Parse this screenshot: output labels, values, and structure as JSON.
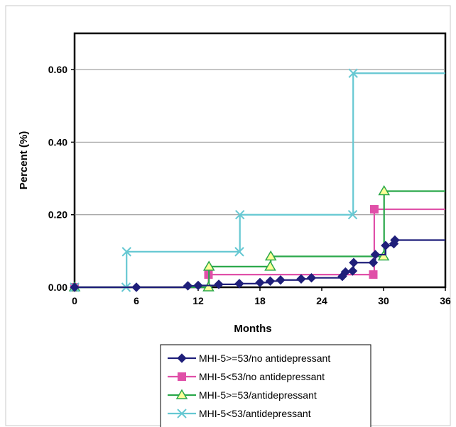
{
  "chart_data": {
    "type": "line",
    "title": "",
    "xlabel": "Months",
    "ylabel": "Percent (%)",
    "xlim": [
      0,
      36
    ],
    "ylim": [
      0,
      0.7
    ],
    "x_ticks": [
      0,
      6,
      12,
      18,
      24,
      30,
      36
    ],
    "x_tick_labels": [
      "0",
      "6",
      "12",
      "18",
      "24",
      "30",
      "36"
    ],
    "y_ticks": [
      0,
      0.2,
      0.4,
      0.6
    ],
    "y_tick_labels": [
      "0.00",
      "0.20",
      "0.40",
      "0.60"
    ],
    "grid": "horizontal",
    "legend_position": "bottom",
    "series": [
      {
        "name": "MHI-5>=53/no antidepressant",
        "color": "#1f1f7a",
        "marker": "diamond",
        "points": [
          [
            0,
            0
          ],
          [
            6,
            0
          ],
          [
            11,
            0.004
          ],
          [
            12,
            0.005
          ],
          [
            14,
            0.008
          ],
          [
            16,
            0.01
          ],
          [
            18,
            0.013
          ],
          [
            19,
            0.017
          ],
          [
            20,
            0.02
          ],
          [
            22,
            0.023
          ],
          [
            23,
            0.026
          ],
          [
            26,
            0.03
          ],
          [
            26.3,
            0.042
          ],
          [
            27,
            0.045
          ],
          [
            27.1,
            0.068
          ],
          [
            29,
            0.068
          ],
          [
            29.2,
            0.09
          ],
          [
            30.2,
            0.115
          ],
          [
            31,
            0.12
          ],
          [
            31.1,
            0.13
          ]
        ],
        "end_x": 36
      },
      {
        "name": "MHI-5<53/no antidepressant",
        "color": "#e050a8",
        "marker": "square",
        "points": [
          [
            0,
            0
          ],
          [
            13,
            0.035
          ],
          [
            29,
            0.035
          ],
          [
            29.1,
            0.215
          ]
        ],
        "end_x": 36
      },
      {
        "name": "MHI-5>=53/antidepressant",
        "color": "#2aa84a",
        "marker": "triangle",
        "points": [
          [
            0,
            0
          ],
          [
            13,
            0
          ],
          [
            13.05,
            0.057
          ],
          [
            19,
            0.057
          ],
          [
            19.05,
            0.085
          ],
          [
            30,
            0.085
          ],
          [
            30.05,
            0.265
          ]
        ],
        "end_x": 36
      },
      {
        "name": "MHI-5<53/antidepressant",
        "color": "#66c8d2",
        "marker": "x",
        "points": [
          [
            0,
            0
          ],
          [
            5,
            0
          ],
          [
            5.05,
            0.098
          ],
          [
            16,
            0.098
          ],
          [
            16.05,
            0.2
          ],
          [
            27,
            0.2
          ],
          [
            27.05,
            0.59
          ]
        ],
        "end_x": 36
      }
    ]
  }
}
